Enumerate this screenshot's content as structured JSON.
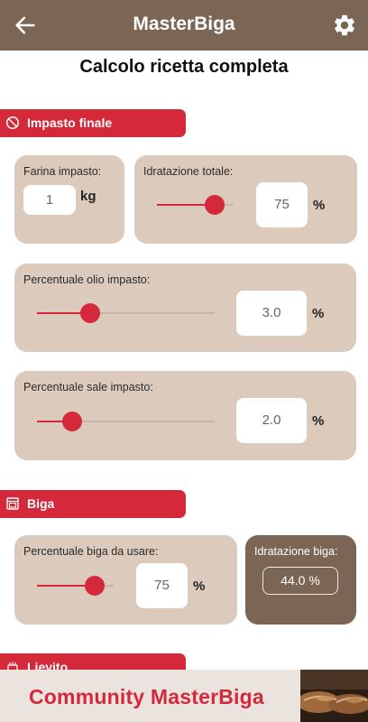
{
  "appbar": {
    "title": "MasterBiga",
    "back_icon": "arrow-left-icon",
    "settings_icon": "gear-icon"
  },
  "page": {
    "title": "Calcolo ricetta completa"
  },
  "sections": {
    "impasto_finale": {
      "title": "Impasto finale",
      "icon": "no-meat-icon"
    },
    "biga": {
      "title": "Biga",
      "icon": "oven-icon"
    },
    "lievito": {
      "title": "Lievito",
      "icon": "yeast-icon"
    }
  },
  "farina": {
    "label": "Farina impasto:",
    "value": "1",
    "unit": "kg"
  },
  "idratazione_totale": {
    "label": "Idratazione totale:",
    "value": "75",
    "unit": "%",
    "slider_fraction": 0.75
  },
  "olio": {
    "label": "Percentuale olio impasto:",
    "value": "3.0",
    "unit": "%",
    "slider_fraction": 0.3
  },
  "sale": {
    "label": "Percentuale sale impasto:",
    "value": "2.0",
    "unit": "%",
    "slider_fraction": 0.2
  },
  "biga_perc": {
    "label": "Percentuale biga da usare:",
    "value": "75",
    "unit": "%",
    "slider_fraction": 0.75
  },
  "idratazione_biga": {
    "label": "Idratazione biga:",
    "value": "44.0 %"
  },
  "banner": {
    "text": "Community MasterBiga"
  },
  "colors": {
    "brown": "#7b6656",
    "red": "#d3293a",
    "card": "#dccbbc",
    "banner_bg": "#ebe3de"
  }
}
